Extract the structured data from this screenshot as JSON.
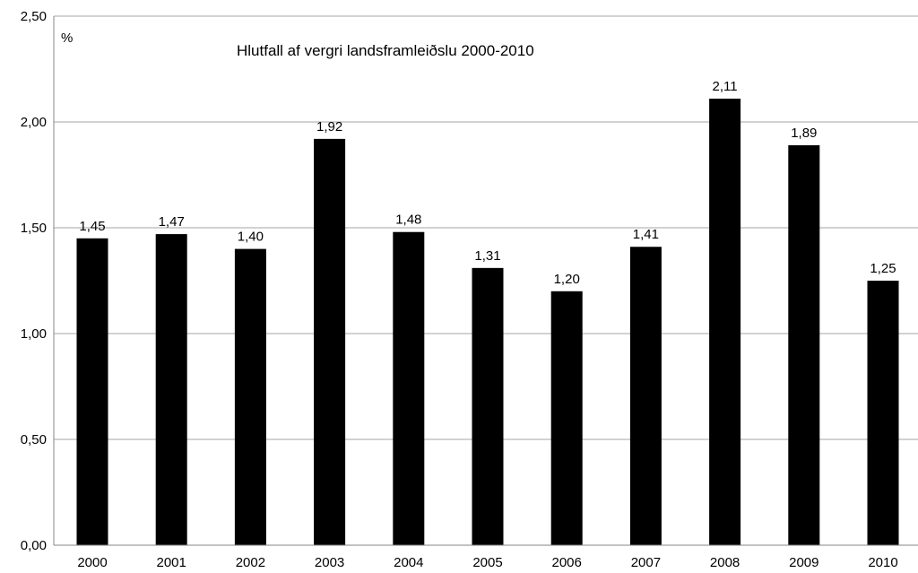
{
  "chart_data": {
    "type": "bar",
    "title": "Hlutfall af vergri landsframleiðslu 2000-2010",
    "ylabel": "%",
    "xlabel": "",
    "categories": [
      "2000",
      "2001",
      "2002",
      "2003",
      "2004",
      "2005",
      "2006",
      "2007",
      "2008",
      "2009",
      "2010"
    ],
    "values": [
      1.45,
      1.47,
      1.4,
      1.92,
      1.48,
      1.31,
      1.2,
      1.41,
      2.11,
      1.89,
      1.25
    ],
    "value_labels": [
      "1,45",
      "1,47",
      "1,40",
      "1,92",
      "1,48",
      "1,31",
      "1,20",
      "1,41",
      "2,11",
      "1,89",
      "1,25"
    ],
    "ylim": [
      0,
      2.5
    ],
    "yticks": [
      0,
      0.5,
      1.0,
      1.5,
      2.0,
      2.5
    ],
    "ytick_labels": [
      "0,00",
      "0,50",
      "1,00",
      "1,50",
      "2,00",
      "2,50"
    ],
    "grid": true,
    "bar_color": "#000000",
    "grid_color": "#a6a6a6"
  }
}
